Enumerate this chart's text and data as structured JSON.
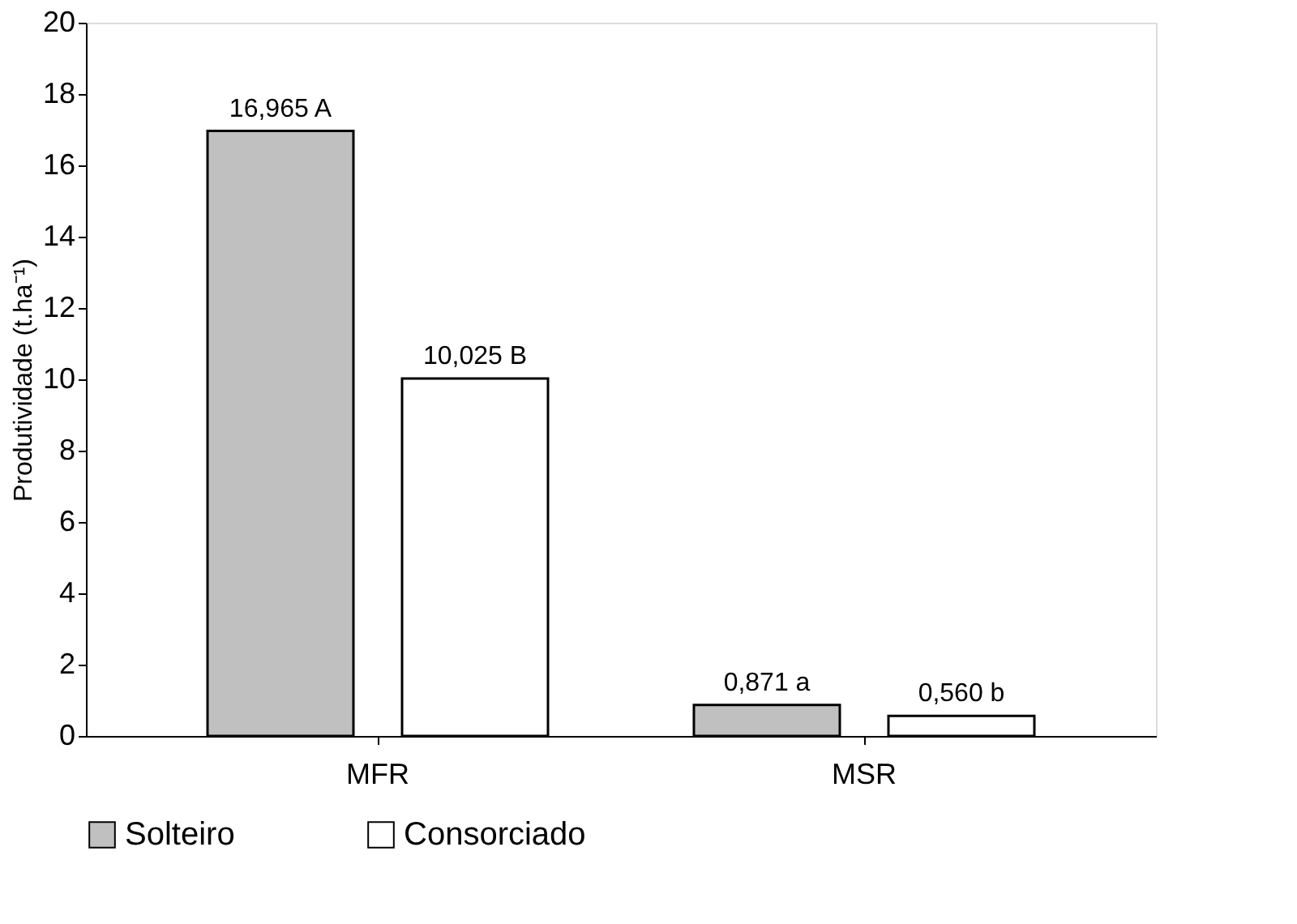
{
  "chart_data": {
    "type": "bar",
    "ylabel": "Produtividade (t.ha⁻¹)",
    "categories": [
      "MFR",
      "MSR"
    ],
    "series": [
      {
        "name": "Solteiro",
        "color": "#c0c0c0",
        "values": [
          16.965,
          0.871
        ],
        "value_labels": [
          "16,965 A",
          "0,871 a"
        ]
      },
      {
        "name": "Consorciado",
        "color": "#ffffff",
        "values": [
          10.025,
          0.56
        ],
        "value_labels": [
          "10,025 B",
          "0,560 b"
        ]
      }
    ],
    "ylim": [
      0,
      20
    ],
    "yticks": [
      0,
      2,
      4,
      6,
      8,
      10,
      12,
      14,
      16,
      18,
      20
    ],
    "grid": false,
    "legend": "bottom"
  }
}
